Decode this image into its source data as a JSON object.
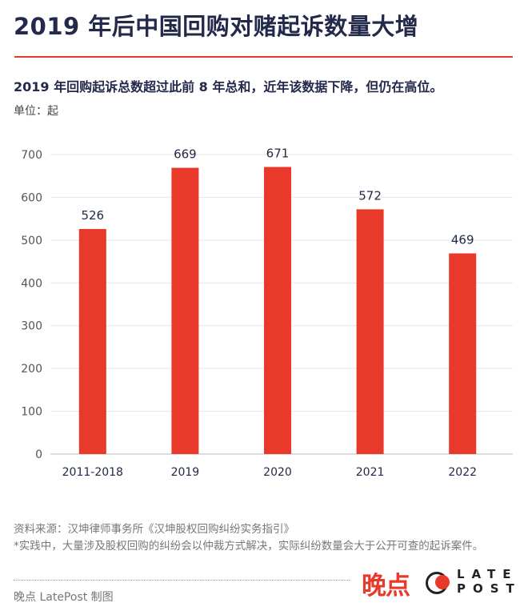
{
  "title": "2019 年后中国回购对赌起诉数量大增",
  "subtitle": "2019 年回购起诉总数超过此前 8 年总和，近年该数据下降，但仍在高位。",
  "unit_label": "单位：起",
  "colors": {
    "bar": "#e8392a",
    "accent": "#e8392a",
    "title": "#22294a"
  },
  "chart_data": {
    "type": "bar",
    "categories": [
      "2011-2018",
      "2019",
      "2020",
      "2021",
      "2022"
    ],
    "values": [
      526,
      669,
      671,
      572,
      469
    ],
    "ylim": [
      0,
      700
    ],
    "yticks": [
      0,
      100,
      200,
      300,
      400,
      500,
      600,
      700
    ],
    "grid": true,
    "data_labels": true
  },
  "footer": {
    "source": "资料来源：汉坤律师事务所《汉坤股权回购纠纷实务指引》",
    "note": "*实践中，大量涉及股权回购的纠纷会以仲裁方式解决，实际纠纷数量会大于公开可查的起诉案件。",
    "credit": "晚点 LatePost 制图"
  },
  "logo": {
    "cn": "晚点",
    "en_line1": "LATE",
    "en_line2": "POST"
  }
}
